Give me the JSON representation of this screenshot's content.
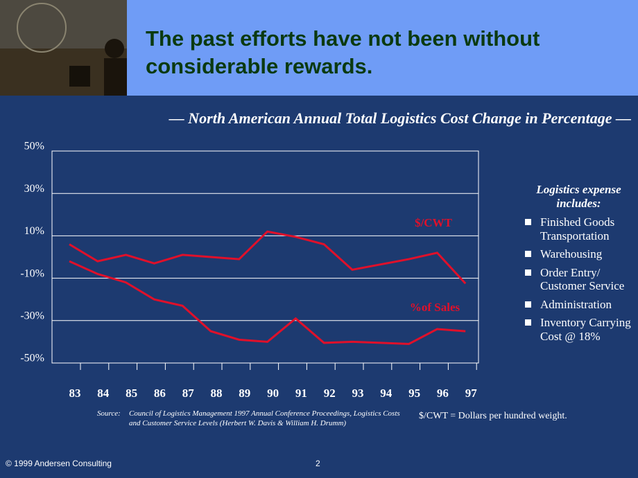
{
  "header": {
    "title": "The past efforts have not been without considerable rewards."
  },
  "chart_data": {
    "type": "line",
    "title": "— North American Annual Total Logistics Cost Change in Percentage —",
    "categories": [
      "83",
      "84",
      "85",
      "86",
      "87",
      "88",
      "89",
      "90",
      "91",
      "92",
      "93",
      "94",
      "95",
      "96",
      "97"
    ],
    "series": [
      {
        "name": "$/CWT",
        "color": "#e0102a",
        "values": [
          6,
          -2,
          1,
          -3,
          1,
          0,
          -1,
          12,
          9.5,
          6,
          -6,
          -3.5,
          -1,
          2,
          -12.5
        ]
      },
      {
        "name": "%of Sales",
        "color": "#e0102a",
        "values": [
          -2,
          -8,
          -12,
          -20,
          -23,
          -35,
          -39,
          -40,
          -29,
          -40.5,
          -40,
          -40.5,
          -41,
          -34,
          -35
        ]
      }
    ],
    "ylim": [
      -50,
      50
    ],
    "yticks": [
      {
        "value": 50,
        "label": "50%"
      },
      {
        "value": 30,
        "label": "30%"
      },
      {
        "value": 10,
        "label": "10%"
      },
      {
        "value": -10,
        "label": "-10%"
      },
      {
        "value": -30,
        "label": "-30%"
      },
      {
        "value": -50,
        "label": "-50%"
      }
    ],
    "grid": true
  },
  "sidebar": {
    "heading": "Logistics expense includes:",
    "items": [
      "Finished Goods Transportation",
      "Warehousing",
      "Order Entry/ Customer Service",
      "Administration",
      "Inventory Carrying Cost @ 18%"
    ]
  },
  "source": {
    "label": "Source:",
    "text": "Council of Logistics Management 1997 Annual Conference Proceedings, Logistics Costs and Customer Service Levels (Herbert W. Davis & William H. Drumm)"
  },
  "note": "$/CWT = Dollars per hundred weight.",
  "footer": {
    "copyright": "© 1999 Andersen Consulting",
    "page": "2"
  }
}
